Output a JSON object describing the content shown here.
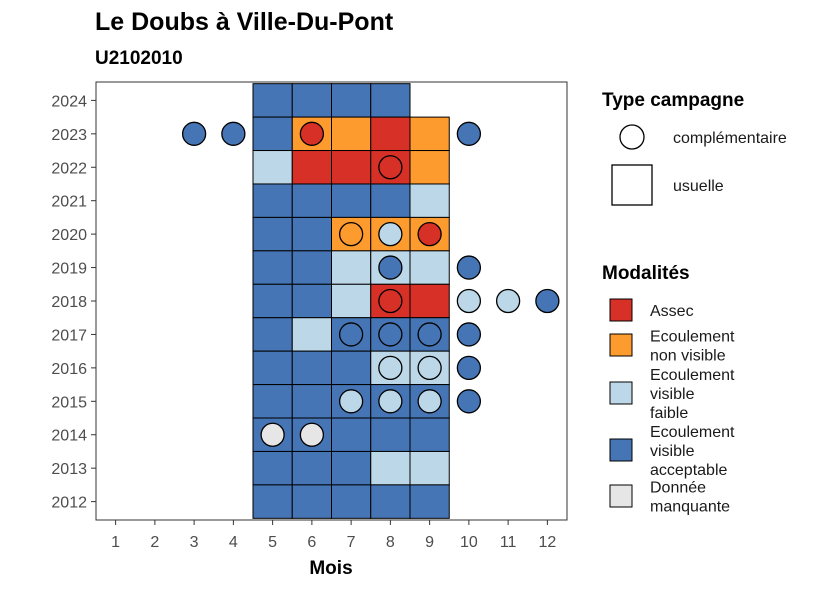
{
  "chart_data": {
    "type": "heatmap",
    "title": "Le Doubs à Ville-Du-Pont",
    "subtitle": "U2102010",
    "xlabel": "Mois",
    "ylabel": "",
    "x_ticks": [
      "1",
      "2",
      "3",
      "4",
      "5",
      "6",
      "7",
      "8",
      "9",
      "10",
      "11",
      "12"
    ],
    "y_ticks": [
      "2012",
      "2013",
      "2014",
      "2015",
      "2016",
      "2017",
      "2018",
      "2019",
      "2020",
      "2021",
      "2022",
      "2023",
      "2024"
    ],
    "xlim": [
      0.5,
      12.5
    ],
    "ylim": [
      2011.45,
      2024.55
    ],
    "grid": false,
    "legend_position": "right",
    "categories": {
      "assec": {
        "label": "Assec",
        "color": "#d73027"
      },
      "nonvisible": {
        "label": "Ecoulement non visible",
        "color": "#fd9b2e"
      },
      "faible": {
        "label": "Ecoulement visible faible",
        "color": "#bcd8e8"
      },
      "acceptable": {
        "label": "Ecoulement visible acceptable",
        "color": "#4575b4"
      },
      "manquante": {
        "label": "Donnée manquante",
        "color": "#e6e6e6"
      }
    },
    "legend_modalites": {
      "title": "Modalités",
      "items": [
        {
          "key": "assec",
          "lines": [
            "Assec"
          ]
        },
        {
          "key": "nonvisible",
          "lines": [
            "Ecoulement",
            "non visible"
          ]
        },
        {
          "key": "faible",
          "lines": [
            "Ecoulement",
            "visible",
            "faible"
          ]
        },
        {
          "key": "acceptable",
          "lines": [
            "Ecoulement",
            "visible",
            "acceptable"
          ]
        },
        {
          "key": "manquante",
          "lines": [
            "Donnée",
            "manquante"
          ]
        }
      ]
    },
    "legend_campagne": {
      "title": "Type campagne",
      "items": [
        {
          "shape": "circle",
          "label": "complémentaire"
        },
        {
          "shape": "square",
          "label": "usuelle"
        }
      ]
    },
    "usuelle": [
      {
        "year": 2024,
        "month": 5,
        "cat": "acceptable"
      },
      {
        "year": 2024,
        "month": 6,
        "cat": "acceptable"
      },
      {
        "year": 2024,
        "month": 7,
        "cat": "acceptable"
      },
      {
        "year": 2024,
        "month": 8,
        "cat": "acceptable"
      },
      {
        "year": 2023,
        "month": 5,
        "cat": "acceptable"
      },
      {
        "year": 2023,
        "month": 6,
        "cat": "nonvisible"
      },
      {
        "year": 2023,
        "month": 7,
        "cat": "nonvisible"
      },
      {
        "year": 2023,
        "month": 8,
        "cat": "assec"
      },
      {
        "year": 2023,
        "month": 9,
        "cat": "nonvisible"
      },
      {
        "year": 2022,
        "month": 5,
        "cat": "faible"
      },
      {
        "year": 2022,
        "month": 6,
        "cat": "assec"
      },
      {
        "year": 2022,
        "month": 7,
        "cat": "assec"
      },
      {
        "year": 2022,
        "month": 8,
        "cat": "assec"
      },
      {
        "year": 2022,
        "month": 9,
        "cat": "nonvisible"
      },
      {
        "year": 2021,
        "month": 5,
        "cat": "acceptable"
      },
      {
        "year": 2021,
        "month": 6,
        "cat": "acceptable"
      },
      {
        "year": 2021,
        "month": 7,
        "cat": "acceptable"
      },
      {
        "year": 2021,
        "month": 8,
        "cat": "acceptable"
      },
      {
        "year": 2021,
        "month": 9,
        "cat": "faible"
      },
      {
        "year": 2020,
        "month": 5,
        "cat": "acceptable"
      },
      {
        "year": 2020,
        "month": 6,
        "cat": "acceptable"
      },
      {
        "year": 2020,
        "month": 7,
        "cat": "nonvisible"
      },
      {
        "year": 2020,
        "month": 8,
        "cat": "nonvisible"
      },
      {
        "year": 2020,
        "month": 9,
        "cat": "nonvisible"
      },
      {
        "year": 2019,
        "month": 5,
        "cat": "acceptable"
      },
      {
        "year": 2019,
        "month": 6,
        "cat": "acceptable"
      },
      {
        "year": 2019,
        "month": 7,
        "cat": "faible"
      },
      {
        "year": 2019,
        "month": 8,
        "cat": "faible"
      },
      {
        "year": 2019,
        "month": 9,
        "cat": "faible"
      },
      {
        "year": 2018,
        "month": 5,
        "cat": "acceptable"
      },
      {
        "year": 2018,
        "month": 6,
        "cat": "acceptable"
      },
      {
        "year": 2018,
        "month": 7,
        "cat": "faible"
      },
      {
        "year": 2018,
        "month": 8,
        "cat": "assec"
      },
      {
        "year": 2018,
        "month": 9,
        "cat": "assec"
      },
      {
        "year": 2017,
        "month": 5,
        "cat": "acceptable"
      },
      {
        "year": 2017,
        "month": 6,
        "cat": "faible"
      },
      {
        "year": 2017,
        "month": 7,
        "cat": "acceptable"
      },
      {
        "year": 2017,
        "month": 8,
        "cat": "acceptable"
      },
      {
        "year": 2017,
        "month": 9,
        "cat": "acceptable"
      },
      {
        "year": 2016,
        "month": 5,
        "cat": "acceptable"
      },
      {
        "year": 2016,
        "month": 6,
        "cat": "acceptable"
      },
      {
        "year": 2016,
        "month": 7,
        "cat": "acceptable"
      },
      {
        "year": 2016,
        "month": 8,
        "cat": "faible"
      },
      {
        "year": 2016,
        "month": 9,
        "cat": "faible"
      },
      {
        "year": 2015,
        "month": 5,
        "cat": "acceptable"
      },
      {
        "year": 2015,
        "month": 6,
        "cat": "acceptable"
      },
      {
        "year": 2015,
        "month": 7,
        "cat": "acceptable"
      },
      {
        "year": 2015,
        "month": 8,
        "cat": "acceptable"
      },
      {
        "year": 2015,
        "month": 9,
        "cat": "acceptable"
      },
      {
        "year": 2014,
        "month": 5,
        "cat": "acceptable"
      },
      {
        "year": 2014,
        "month": 6,
        "cat": "acceptable"
      },
      {
        "year": 2014,
        "month": 7,
        "cat": "acceptable"
      },
      {
        "year": 2014,
        "month": 8,
        "cat": "acceptable"
      },
      {
        "year": 2014,
        "month": 9,
        "cat": "acceptable"
      },
      {
        "year": 2013,
        "month": 5,
        "cat": "acceptable"
      },
      {
        "year": 2013,
        "month": 6,
        "cat": "acceptable"
      },
      {
        "year": 2013,
        "month": 7,
        "cat": "acceptable"
      },
      {
        "year": 2013,
        "month": 8,
        "cat": "faible"
      },
      {
        "year": 2013,
        "month": 9,
        "cat": "faible"
      },
      {
        "year": 2012,
        "month": 5,
        "cat": "acceptable"
      },
      {
        "year": 2012,
        "month": 6,
        "cat": "acceptable"
      },
      {
        "year": 2012,
        "month": 7,
        "cat": "acceptable"
      },
      {
        "year": 2012,
        "month": 8,
        "cat": "acceptable"
      },
      {
        "year": 2012,
        "month": 9,
        "cat": "acceptable"
      }
    ],
    "complementaire": [
      {
        "year": 2023,
        "month": 3,
        "cat": "acceptable"
      },
      {
        "year": 2023,
        "month": 4,
        "cat": "acceptable"
      },
      {
        "year": 2023,
        "month": 6,
        "cat": "assec"
      },
      {
        "year": 2023,
        "month": 10,
        "cat": "acceptable"
      },
      {
        "year": 2022,
        "month": 8,
        "cat": "assec"
      },
      {
        "year": 2020,
        "month": 7,
        "cat": "nonvisible"
      },
      {
        "year": 2020,
        "month": 8,
        "cat": "faible"
      },
      {
        "year": 2020,
        "month": 9,
        "cat": "assec"
      },
      {
        "year": 2019,
        "month": 8,
        "cat": "acceptable"
      },
      {
        "year": 2019,
        "month": 10,
        "cat": "acceptable"
      },
      {
        "year": 2018,
        "month": 8,
        "cat": "assec"
      },
      {
        "year": 2018,
        "month": 10,
        "cat": "faible"
      },
      {
        "year": 2018,
        "month": 11,
        "cat": "faible"
      },
      {
        "year": 2018,
        "month": 12,
        "cat": "acceptable"
      },
      {
        "year": 2017,
        "month": 7,
        "cat": "acceptable"
      },
      {
        "year": 2017,
        "month": 8,
        "cat": "acceptable"
      },
      {
        "year": 2017,
        "month": 9,
        "cat": "acceptable"
      },
      {
        "year": 2017,
        "month": 10,
        "cat": "acceptable"
      },
      {
        "year": 2016,
        "month": 8,
        "cat": "faible"
      },
      {
        "year": 2016,
        "month": 9,
        "cat": "faible"
      },
      {
        "year": 2016,
        "month": 10,
        "cat": "acceptable"
      },
      {
        "year": 2015,
        "month": 7,
        "cat": "faible"
      },
      {
        "year": 2015,
        "month": 8,
        "cat": "faible"
      },
      {
        "year": 2015,
        "month": 9,
        "cat": "faible"
      },
      {
        "year": 2015,
        "month": 10,
        "cat": "acceptable"
      },
      {
        "year": 2014,
        "month": 5,
        "cat": "manquante"
      },
      {
        "year": 2014,
        "month": 6,
        "cat": "manquante"
      }
    ]
  }
}
